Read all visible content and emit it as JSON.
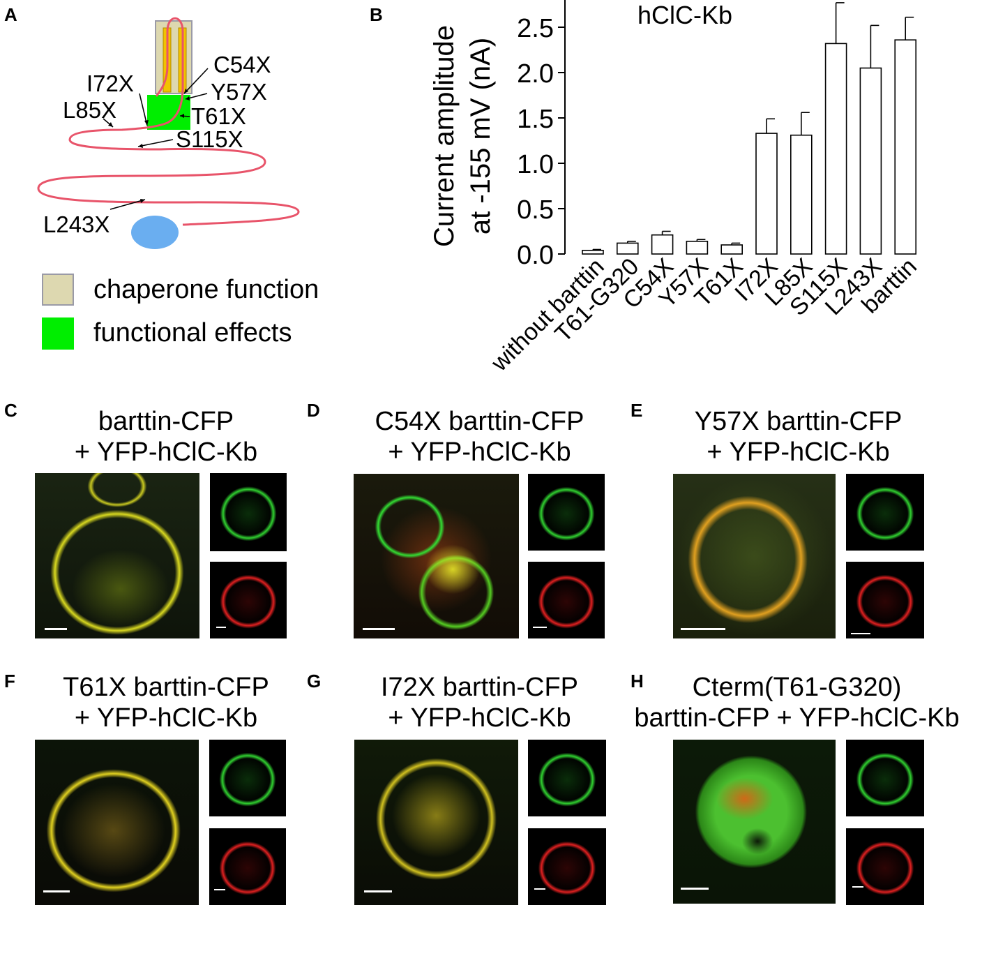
{
  "panel_a": {
    "label": "A",
    "mutations": [
      "C54X",
      "I72X",
      "Y57X",
      "L85X",
      "T61X",
      "S115X",
      "L243X"
    ],
    "legend": [
      {
        "text": "chaperone function",
        "color": "#ddd8b0"
      },
      {
        "text": "functional effects",
        "color": "#00ee00"
      }
    ],
    "colors": {
      "chain": "#e8546a",
      "helix": "#f2c200",
      "cterm": "#6aaef0"
    }
  },
  "panel_b": {
    "label": "B",
    "chart_data": {
      "type": "bar",
      "title": "hClC-Kb",
      "ylabel_line1": "Current amplitude",
      "ylabel_line2": "at -155 mV (nA)",
      "xlabel": "",
      "categories": [
        "without barttin",
        "T61-G320",
        "C54X",
        "Y57X",
        "T61X",
        "I72X",
        "L85X",
        "S115X",
        "L243X",
        "barttin"
      ],
      "values": [
        0.04,
        0.12,
        0.21,
        0.14,
        0.1,
        1.33,
        1.31,
        2.32,
        2.05,
        2.36
      ],
      "errors": [
        0.01,
        0.02,
        0.04,
        0.02,
        0.02,
        0.16,
        0.25,
        0.45,
        0.47,
        0.25
      ],
      "ylim": [
        0,
        2.8
      ],
      "yticks": [
        "0.0",
        "0.5",
        "1.0",
        "1.5",
        "2.0",
        "2.5"
      ],
      "bar_color": "#ffffff",
      "grid": false
    }
  },
  "panels": [
    {
      "id": "c",
      "label": "C",
      "title1": "barttin-CFP",
      "title2": "+ YFP-hClC-Kb"
    },
    {
      "id": "d",
      "label": "D",
      "title1": "C54X barttin-CFP",
      "title2": "+ YFP-hClC-Kb"
    },
    {
      "id": "e",
      "label": "E",
      "title1": "Y57X barttin-CFP",
      "title2": "+ YFP-hClC-Kb"
    },
    {
      "id": "f",
      "label": "F",
      "title1": "T61X barttin-CFP",
      "title2": "+ YFP-hClC-Kb"
    },
    {
      "id": "g",
      "label": "G",
      "title1": "I72X barttin-CFP",
      "title2": "+ YFP-hClC-Kb"
    },
    {
      "id": "h",
      "label": "H",
      "title1": "Cterm(T61-G320)",
      "title2": "barttin-CFP + YFP-hClC-Kb"
    }
  ]
}
